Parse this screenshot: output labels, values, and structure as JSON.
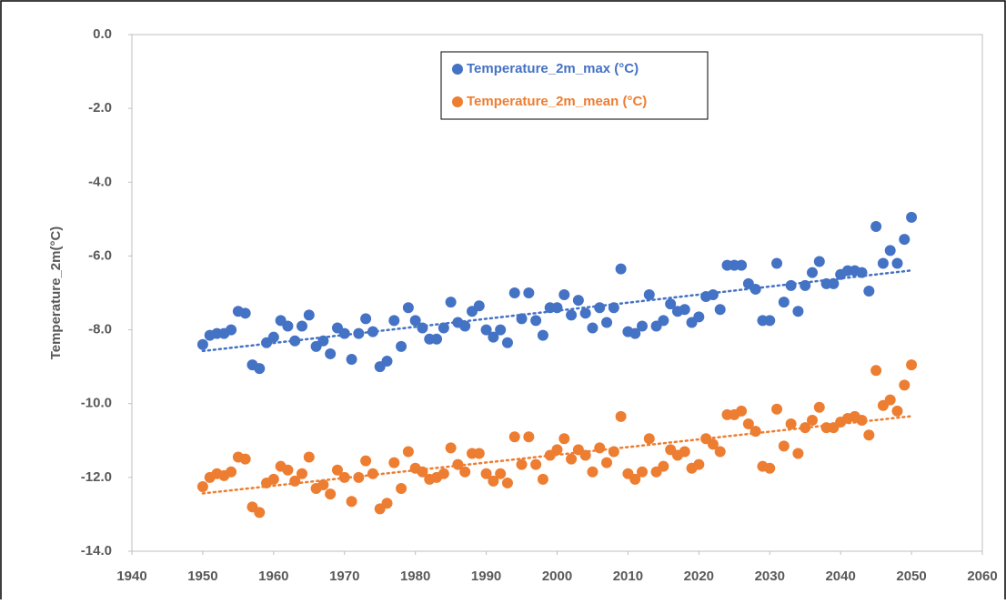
{
  "chart_data": {
    "type": "scatter",
    "ylabel": "Temperature_2m(°C)",
    "x": [
      1950,
      1951,
      1952,
      1953,
      1954,
      1955,
      1956,
      1957,
      1958,
      1959,
      1960,
      1961,
      1962,
      1963,
      1964,
      1965,
      1966,
      1967,
      1968,
      1969,
      1970,
      1971,
      1972,
      1973,
      1974,
      1975,
      1976,
      1977,
      1978,
      1979,
      1980,
      1981,
      1982,
      1983,
      1984,
      1985,
      1986,
      1987,
      1988,
      1989,
      1990,
      1991,
      1992,
      1993,
      1994,
      1995,
      1996,
      1997,
      1998,
      1999,
      2000,
      2001,
      2002,
      2003,
      2004,
      2005,
      2006,
      2007,
      2008,
      2009,
      2010,
      2011,
      2012,
      2013,
      2014,
      2015,
      2016,
      2017,
      2018,
      2019,
      2020,
      2021,
      2022,
      2023,
      2024,
      2025,
      2026,
      2027,
      2028,
      2029,
      2030,
      2031,
      2032,
      2033,
      2034,
      2035,
      2036,
      2037,
      2038,
      2039,
      2040,
      2041,
      2042,
      2043,
      2044,
      2045,
      2046,
      2047,
      2048,
      2049,
      2050
    ],
    "series": [
      {
        "name": "Temperature_2m_max (°C)",
        "color": "#4472c4",
        "values": [
          -8.4,
          -8.15,
          -8.1,
          -8.1,
          -8.0,
          -7.5,
          -7.55,
          -8.95,
          -9.05,
          -8.35,
          -8.2,
          -7.75,
          -7.9,
          -8.3,
          -7.9,
          -7.6,
          -8.45,
          -8.3,
          -8.65,
          -7.95,
          -8.1,
          -8.8,
          -8.1,
          -7.7,
          -8.05,
          -9.0,
          -8.85,
          -7.75,
          -8.45,
          -7.4,
          -7.75,
          -7.95,
          -8.25,
          -8.25,
          -7.95,
          -7.25,
          -7.8,
          -7.9,
          -7.5,
          -7.35,
          -8.0,
          -8.2,
          -8.0,
          -8.35,
          -7.0,
          -7.7,
          -7.0,
          -7.75,
          -8.15,
          -7.4,
          -7.4,
          -7.05,
          -7.6,
          -7.2,
          -7.55,
          -7.95,
          -7.4,
          -7.8,
          -7.4,
          -6.35,
          -8.05,
          -8.1,
          -7.9,
          -7.05,
          -7.9,
          -7.75,
          -7.3,
          -7.5,
          -7.45,
          -7.8,
          -7.65,
          -7.1,
          -7.05,
          -7.45,
          -6.25,
          -6.25,
          -6.25,
          -6.75,
          -6.9,
          -7.75,
          -7.75,
          -6.2,
          -7.25,
          -6.8,
          -7.5,
          -6.8,
          -6.45,
          -6.15,
          -6.75,
          -6.75,
          -6.5,
          -6.4,
          -6.4,
          -6.45,
          -6.95,
          -5.2,
          -6.2,
          -5.85,
          -6.2,
          -5.55,
          -4.95
        ]
      },
      {
        "name": "Temperature_2m_mean (°C)",
        "color": "#ed7d31",
        "values": [
          -12.25,
          -12.0,
          -11.9,
          -11.95,
          -11.85,
          -11.45,
          -11.5,
          -12.8,
          -12.95,
          -12.15,
          -12.05,
          -11.7,
          -11.8,
          -12.1,
          -11.9,
          -11.45,
          -12.3,
          -12.2,
          -12.45,
          -11.8,
          -12.0,
          -12.65,
          -12.0,
          -11.55,
          -11.9,
          -12.85,
          -12.7,
          -11.6,
          -12.3,
          -11.3,
          -11.75,
          -11.85,
          -12.05,
          -12.0,
          -11.9,
          -11.2,
          -11.65,
          -11.85,
          -11.35,
          -11.35,
          -11.9,
          -12.1,
          -11.9,
          -12.15,
          -10.9,
          -11.65,
          -10.9,
          -11.65,
          -12.05,
          -11.4,
          -11.25,
          -10.95,
          -11.5,
          -11.25,
          -11.4,
          -11.85,
          -11.2,
          -11.6,
          -11.3,
          -10.35,
          -11.9,
          -12.05,
          -11.85,
          -10.95,
          -11.85,
          -11.7,
          -11.25,
          -11.4,
          -11.3,
          -11.75,
          -11.65,
          -10.95,
          -11.1,
          -11.3,
          -10.3,
          -10.3,
          -10.2,
          -10.55,
          -10.75,
          -11.7,
          -11.75,
          -10.15,
          -11.15,
          -10.55,
          -11.35,
          -10.65,
          -10.45,
          -10.1,
          -10.65,
          -10.65,
          -10.5,
          -10.4,
          -10.35,
          -10.45,
          -10.85,
          -9.1,
          -10.05,
          -9.9,
          -10.2,
          -9.5,
          -8.95
        ]
      }
    ],
    "xlim": [
      1940,
      2060
    ],
    "xticks": [
      1940,
      1950,
      1960,
      1970,
      1980,
      1990,
      2000,
      2010,
      2020,
      2030,
      2040,
      2050,
      2060
    ],
    "ylim": [
      -14,
      0
    ],
    "yticks": [
      {
        "value": -14,
        "label": "-14.0"
      },
      {
        "value": -12,
        "label": "-12.0"
      },
      {
        "value": -10,
        "label": "-10.0"
      },
      {
        "value": -8,
        "label": "-8.0"
      },
      {
        "value": -6,
        "label": "-6.0"
      },
      {
        "value": -4,
        "label": "-4.0"
      },
      {
        "value": -2,
        "label": "-2.0"
      },
      {
        "value": 0,
        "label": "0.0"
      }
    ],
    "trendline": true,
    "legend": "top"
  }
}
